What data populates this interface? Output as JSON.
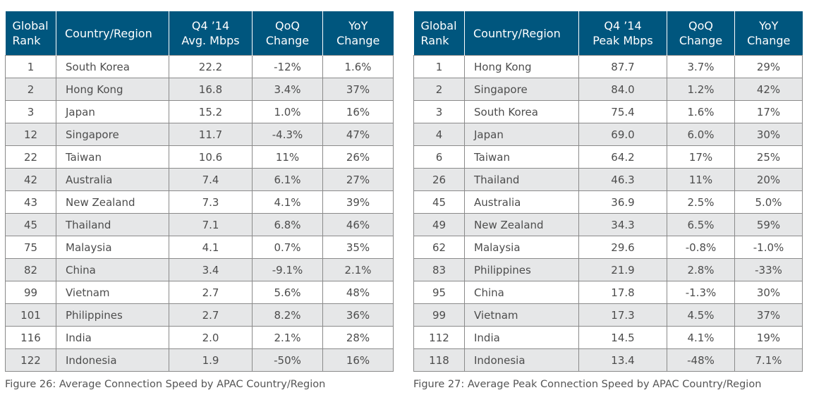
{
  "figure_left": {
    "headers": [
      "Global\nRank",
      "Country/Region",
      "Q4 ’14\nAvg. Mbps",
      "QoQ\nChange",
      "YoY\nChange"
    ],
    "rows": [
      [
        "1",
        "South Korea",
        "22.2",
        "-12%",
        "1.6%"
      ],
      [
        "2",
        "Hong Kong",
        "16.8",
        "3.4%",
        "37%"
      ],
      [
        "3",
        "Japan",
        "15.2",
        "1.0%",
        "16%"
      ],
      [
        "12",
        "Singapore",
        "11.7",
        "-4.3%",
        "47%"
      ],
      [
        "22",
        "Taiwan",
        "10.6",
        "11%",
        "26%"
      ],
      [
        "42",
        "Australia",
        "7.4",
        "6.1%",
        "27%"
      ],
      [
        "43",
        "New Zealand",
        "7.3",
        "4.1%",
        "39%"
      ],
      [
        "45",
        "Thailand",
        "7.1",
        "6.8%",
        "46%"
      ],
      [
        "75",
        "Malaysia",
        "4.1",
        "0.7%",
        "35%"
      ],
      [
        "82",
        "China",
        "3.4",
        "-9.1%",
        "2.1%"
      ],
      [
        "99",
        "Vietnam",
        "2.7",
        "5.6%",
        "48%"
      ],
      [
        "101",
        "Philippines",
        "2.7",
        "8.2%",
        "36%"
      ],
      [
        "116",
        "India",
        "2.0",
        "2.1%",
        "28%"
      ],
      [
        "122",
        "Indonesia",
        "1.9",
        "-50%",
        "16%"
      ]
    ],
    "caption": "Figure 26: Average Connection Speed by APAC Country/Region"
  },
  "figure_right": {
    "headers": [
      "Global\nRank",
      "Country/Region",
      "Q4 ’14\nPeak Mbps",
      "QoQ\nChange",
      "YoY\nChange"
    ],
    "rows": [
      [
        "1",
        "Hong Kong",
        "87.7",
        "3.7%",
        "29%"
      ],
      [
        "2",
        "Singapore",
        "84.0",
        "1.2%",
        "42%"
      ],
      [
        "3",
        "South Korea",
        "75.4",
        "1.6%",
        "17%"
      ],
      [
        "4",
        "Japan",
        "69.0",
        "6.0%",
        "30%"
      ],
      [
        "6",
        "Taiwan",
        "64.2",
        "17%",
        "25%"
      ],
      [
        "26",
        "Thailand",
        "46.3",
        "11%",
        "20%"
      ],
      [
        "45",
        "Australia",
        "36.9",
        "2.5%",
        "5.0%"
      ],
      [
        "49",
        "New Zealand",
        "34.3",
        "6.5%",
        "59%"
      ],
      [
        "62",
        "Malaysia",
        "29.6",
        "-0.8%",
        "-1.0%"
      ],
      [
        "83",
        "Philippines",
        "21.9",
        "2.8%",
        "-33%"
      ],
      [
        "95",
        "China",
        "17.8",
        "-1.3%",
        "30%"
      ],
      [
        "99",
        "Vietnam",
        "17.3",
        "4.5%",
        "37%"
      ],
      [
        "112",
        "India",
        "14.5",
        "4.1%",
        "19%"
      ],
      [
        "118",
        "Indonesia",
        "13.4",
        "-48%",
        "7.1%"
      ]
    ],
    "caption": "Figure 27: Average Peak Connection Speed by APAC Country/Region"
  }
}
